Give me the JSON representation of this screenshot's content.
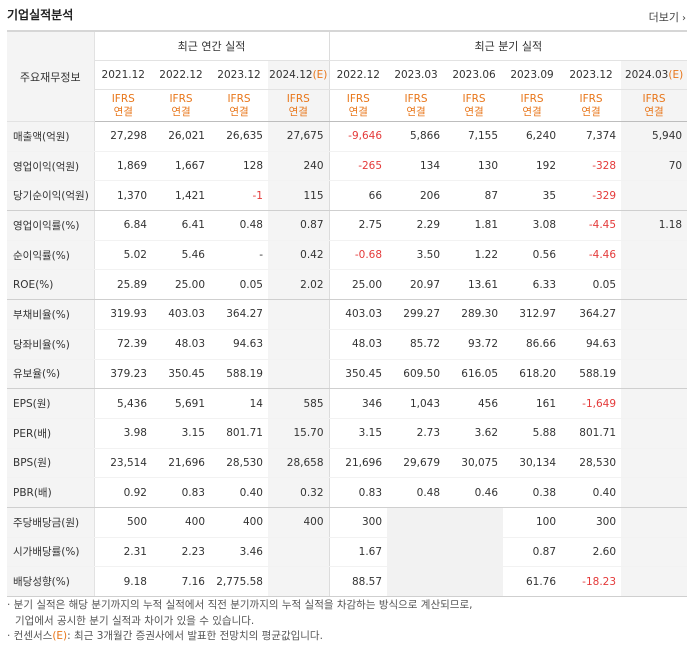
{
  "header": {
    "title": "기업실적분석",
    "more_label": "더보기",
    "more_icon": "chevron-right-icon"
  },
  "table": {
    "label_header": "주요재무정보",
    "group_annual": "최근 연간 실적",
    "group_quarter": "최근 분기 실적",
    "annual_periods": [
      "2021.12",
      "2022.12",
      "2023.12",
      "2024.12"
    ],
    "annual_estimate_suffix": "(E)",
    "quarter_periods": [
      "2022.12",
      "2023.03",
      "2023.06",
      "2023.09",
      "2023.12",
      "2024.03"
    ],
    "quarter_estimate_suffix": "(E)",
    "accounting_line1": "IFRS",
    "accounting_line2": "연결",
    "rows": [
      {
        "label": "매출액(억원)",
        "values": [
          "27,298",
          "26,021",
          "26,635",
          "27,675",
          "-9,646",
          "5,866",
          "7,155",
          "6,240",
          "7,374",
          "5,940"
        ]
      },
      {
        "label": "영업이익(억원)",
        "values": [
          "1,869",
          "1,667",
          "128",
          "240",
          "-265",
          "134",
          "130",
          "192",
          "-328",
          "70"
        ]
      },
      {
        "label": "당기순이익(억원)",
        "values": [
          "1,370",
          "1,421",
          "-1",
          "115",
          "66",
          "206",
          "87",
          "35",
          "-329",
          ""
        ]
      },
      {
        "label": "영업이익률(%)",
        "values": [
          "6.84",
          "6.41",
          "0.48",
          "0.87",
          "2.75",
          "2.29",
          "1.81",
          "3.08",
          "-4.45",
          "1.18"
        ]
      },
      {
        "label": "순이익률(%)",
        "values": [
          "5.02",
          "5.46",
          "-",
          "0.42",
          "-0.68",
          "3.50",
          "1.22",
          "0.56",
          "-4.46",
          ""
        ]
      },
      {
        "label": "ROE(%)",
        "values": [
          "25.89",
          "25.00",
          "0.05",
          "2.02",
          "25.00",
          "20.97",
          "13.61",
          "6.33",
          "0.05",
          ""
        ]
      },
      {
        "label": "부채비율(%)",
        "values": [
          "319.93",
          "403.03",
          "364.27",
          "",
          "403.03",
          "299.27",
          "289.30",
          "312.97",
          "364.27",
          ""
        ]
      },
      {
        "label": "당좌비율(%)",
        "values": [
          "72.39",
          "48.03",
          "94.63",
          "",
          "48.03",
          "85.72",
          "93.72",
          "86.66",
          "94.63",
          ""
        ]
      },
      {
        "label": "유보율(%)",
        "values": [
          "379.23",
          "350.45",
          "588.19",
          "",
          "350.45",
          "609.50",
          "616.05",
          "618.20",
          "588.19",
          ""
        ]
      },
      {
        "label": "EPS(원)",
        "values": [
          "5,436",
          "5,691",
          "14",
          "585",
          "346",
          "1,043",
          "456",
          "161",
          "-1,649",
          ""
        ]
      },
      {
        "label": "PER(배)",
        "values": [
          "3.98",
          "3.15",
          "801.71",
          "15.70",
          "3.15",
          "2.73",
          "3.62",
          "5.88",
          "801.71",
          ""
        ]
      },
      {
        "label": "BPS(원)",
        "values": [
          "23,514",
          "21,696",
          "28,530",
          "28,658",
          "21,696",
          "29,679",
          "30,075",
          "30,134",
          "28,530",
          ""
        ]
      },
      {
        "label": "PBR(배)",
        "values": [
          "0.92",
          "0.83",
          "0.40",
          "0.32",
          "0.83",
          "0.48",
          "0.46",
          "0.38",
          "0.40",
          ""
        ]
      },
      {
        "label": "주당배당금(원)",
        "values": [
          "500",
          "400",
          "400",
          "400",
          "300",
          "",
          "",
          "100",
          "300",
          ""
        ]
      },
      {
        "label": "시가배당률(%)",
        "values": [
          "2.31",
          "2.23",
          "3.46",
          "",
          "1.67",
          "",
          "",
          "0.87",
          "2.60",
          ""
        ]
      },
      {
        "label": "배당성향(%)",
        "values": [
          "9.18",
          "7.16",
          "2,775.58",
          "",
          "88.57",
          "",
          "",
          "61.76",
          "-18.23",
          ""
        ]
      }
    ]
  },
  "notes": {
    "line1": "· 분기 실적은 해당 분기까지의 누적 실적에서 직전 분기까지의 누적 실적을 차감하는 방식으로 계산되므로,",
    "line2": "기업에서 공시한 분기 실적과 차이가 있을 수 있습니다.",
    "line3_prefix": "· 컨센서스",
    "line3_marker": "(E)",
    "line3_suffix": ": 최근 3개월간 증권사에서 발표한 전망치의 평균값입니다."
  },
  "colors": {
    "negative": "#e43a3a",
    "accent": "#e8761a",
    "estimate_bg": "#f4f4f4",
    "label_bg": "#f4f4f4"
  }
}
